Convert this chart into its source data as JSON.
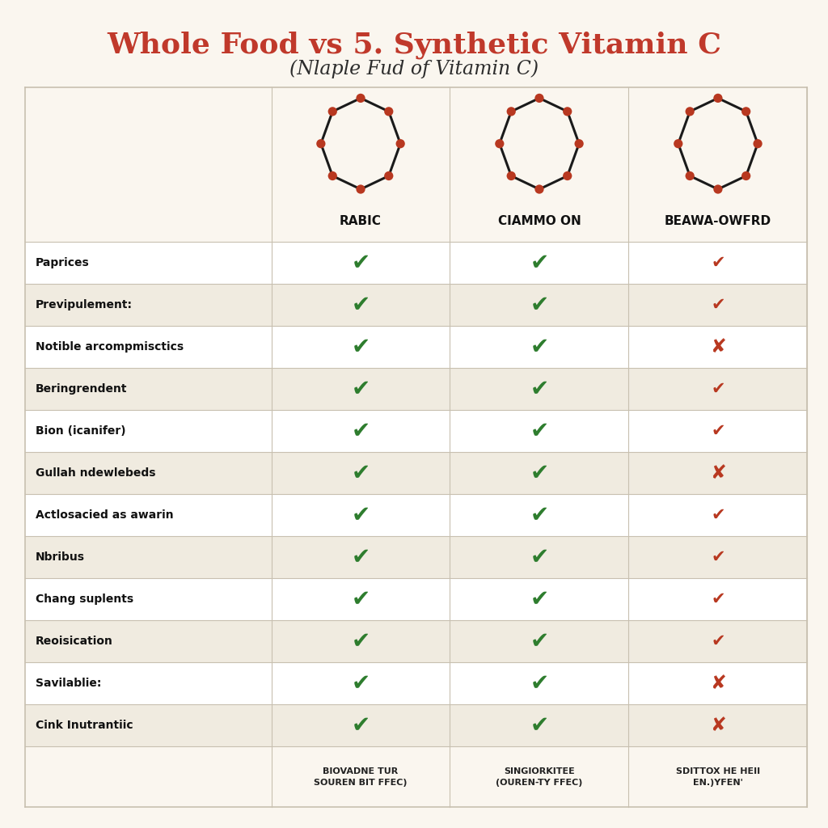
{
  "title": "Whole Food vs 5. Synthetic Vitamin C",
  "subtitle": "(Nlaple Fud of Vitamin C)",
  "title_color": "#c0392b",
  "subtitle_color": "#2c2c2c",
  "bg_color": "#faf6ef",
  "table_bg_alt": "#f0ebe0",
  "col_headers": [
    "RABIC",
    "CIAMMO ON",
    "BEAWA-OWFRD"
  ],
  "col_footers": [
    "BIOVADNE TUR\nSOUREN BIT FFEC)",
    "SINGIORKITEE\n(OUREN-TY FFEC)",
    "SDITTOX HE HEII\nEN.)YFEN'"
  ],
  "row_labels": [
    "Paprices",
    "Previpulement:",
    "Notible arcompmisctics",
    "Beringrendent",
    "Bion (icanifer)",
    "Gullah ndewlebeds",
    "Actlosacied as awarin",
    "Nbribus",
    "Chang suplents",
    "Reoisication",
    "Savilablie:",
    "Cink Inutrantiic"
  ],
  "check_data": [
    [
      "green_check",
      "green_check",
      "red_check"
    ],
    [
      "green_check",
      "green_check",
      "red_check"
    ],
    [
      "green_check",
      "green_check",
      "red_x"
    ],
    [
      "green_check",
      "green_check",
      "red_check"
    ],
    [
      "green_check",
      "green_check",
      "red_check"
    ],
    [
      "green_check",
      "green_check",
      "red_x"
    ],
    [
      "green_check",
      "green_check",
      "red_check"
    ],
    [
      "green_check",
      "green_check",
      "red_check"
    ],
    [
      "green_check",
      "green_check",
      "red_check"
    ],
    [
      "green_check",
      "green_check",
      "red_check"
    ],
    [
      "green_check",
      "green_check",
      "red_x"
    ],
    [
      "green_check",
      "green_check",
      "red_x"
    ]
  ],
  "green_check_color": "#2e7d2e",
  "red_check_color": "#b83820",
  "red_x_color": "#b83820",
  "border_color": "#c8c0b0",
  "header_text_color": "#111111",
  "row_label_color": "#111111",
  "footer_text_color": "#222222",
  "title_fontsize": 26,
  "subtitle_fontsize": 17
}
